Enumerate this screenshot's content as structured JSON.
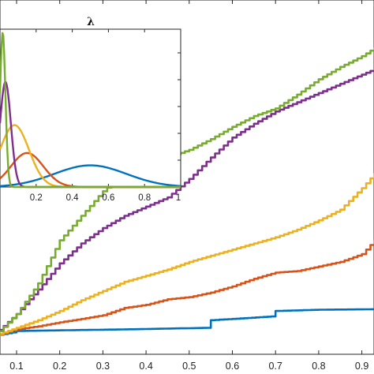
{
  "chart_data": [
    {
      "type": "line",
      "title": "",
      "xlabel": "",
      "ylabel": "",
      "xlim": [
        0.05,
        1.0
      ],
      "xticks": [
        "0.1",
        "0.2",
        "0.3",
        "0.4",
        "0.5",
        "0.6",
        "0.7",
        "0.8",
        "0.9"
      ],
      "grid": false,
      "series": [
        {
          "color": "#0072BD",
          "x": [
            0.05,
            0.09,
            0.1,
            0.11,
            0.2,
            0.35,
            0.54,
            0.55,
            0.6,
            0.69,
            0.7,
            0.8,
            0.95,
            1.0
          ],
          "y": [
            0.02,
            0.03,
            0.035,
            0.035,
            0.037,
            0.04,
            0.045,
            0.07,
            0.074,
            0.082,
            0.1,
            0.104,
            0.106,
            0.107
          ]
        },
        {
          "color": "#D95319",
          "x": [
            0.05,
            0.1,
            0.15,
            0.2,
            0.25,
            0.3,
            0.35,
            0.4,
            0.45,
            0.5,
            0.55,
            0.6,
            0.65,
            0.7,
            0.75,
            0.8,
            0.85,
            0.9,
            0.93,
            0.97,
            1.0
          ],
          "y": [
            0.02,
            0.04,
            0.05,
            0.063,
            0.074,
            0.086,
            0.11,
            0.12,
            0.138,
            0.145,
            0.16,
            0.18,
            0.205,
            0.225,
            0.23,
            0.245,
            0.26,
            0.285,
            0.33,
            0.38,
            0.4
          ]
        },
        {
          "color": "#EDB120",
          "x": [
            0.05,
            0.1,
            0.15,
            0.2,
            0.25,
            0.3,
            0.35,
            0.4,
            0.45,
            0.5,
            0.55,
            0.6,
            0.65,
            0.7,
            0.75,
            0.8,
            0.85,
            0.9,
            0.95,
            1.0
          ],
          "y": [
            0.02,
            0.045,
            0.07,
            0.1,
            0.135,
            0.165,
            0.195,
            0.215,
            0.235,
            0.26,
            0.28,
            0.3,
            0.32,
            0.34,
            0.365,
            0.395,
            0.43,
            0.5,
            0.58,
            0.63
          ]
        },
        {
          "color": "#7E2F8E",
          "x": [
            0.05,
            0.1,
            0.15,
            0.2,
            0.25,
            0.3,
            0.35,
            0.4,
            0.45,
            0.5,
            0.55,
            0.6,
            0.65,
            0.7,
            0.75,
            0.8,
            0.85,
            0.9,
            0.95,
            1.0
          ],
          "y": [
            0.025,
            0.09,
            0.17,
            0.255,
            0.32,
            0.37,
            0.41,
            0.44,
            0.47,
            0.53,
            0.6,
            0.665,
            0.71,
            0.75,
            0.78,
            0.81,
            0.84,
            0.87,
            0.9,
            0.95
          ]
        },
        {
          "color": "#77AC30",
          "x": [
            0.05,
            0.1,
            0.15,
            0.2,
            0.25,
            0.3,
            0.35,
            0.4,
            0.45,
            0.5,
            0.55,
            0.6,
            0.65,
            0.7,
            0.75,
            0.8,
            0.85,
            0.9,
            0.95,
            1.0
          ],
          "y": [
            0.02,
            0.09,
            0.19,
            0.33,
            0.41,
            0.49,
            0.55,
            0.58,
            0.6,
            0.625,
            0.66,
            0.7,
            0.735,
            0.76,
            0.805,
            0.855,
            0.895,
            0.93,
            0.975,
            1.01
          ]
        }
      ]
    },
    {
      "type": "line",
      "title": "λ",
      "xlabel": "",
      "ylabel": "",
      "xlim": [
        0.0,
        1.0
      ],
      "ylim": [
        0.0,
        1.0
      ],
      "xticks": [
        "0.2",
        "0.4",
        "0.6",
        "0.8",
        "1"
      ],
      "series": [
        {
          "color": "#0072BD",
          "mean": 0.5,
          "sd": 0.2,
          "peak": 0.14
        },
        {
          "color": "#D95319",
          "mean": 0.15,
          "sd": 0.09,
          "peak": 0.22
        },
        {
          "color": "#EDB120",
          "mean": 0.08,
          "sd": 0.08,
          "peak": 0.4
        },
        {
          "color": "#7E2F8E",
          "mean": 0.03,
          "sd": 0.03,
          "peak": 0.68
        },
        {
          "color": "#77AC30",
          "mean": 0.015,
          "sd": 0.015,
          "peak": 1.0
        }
      ]
    }
  ]
}
